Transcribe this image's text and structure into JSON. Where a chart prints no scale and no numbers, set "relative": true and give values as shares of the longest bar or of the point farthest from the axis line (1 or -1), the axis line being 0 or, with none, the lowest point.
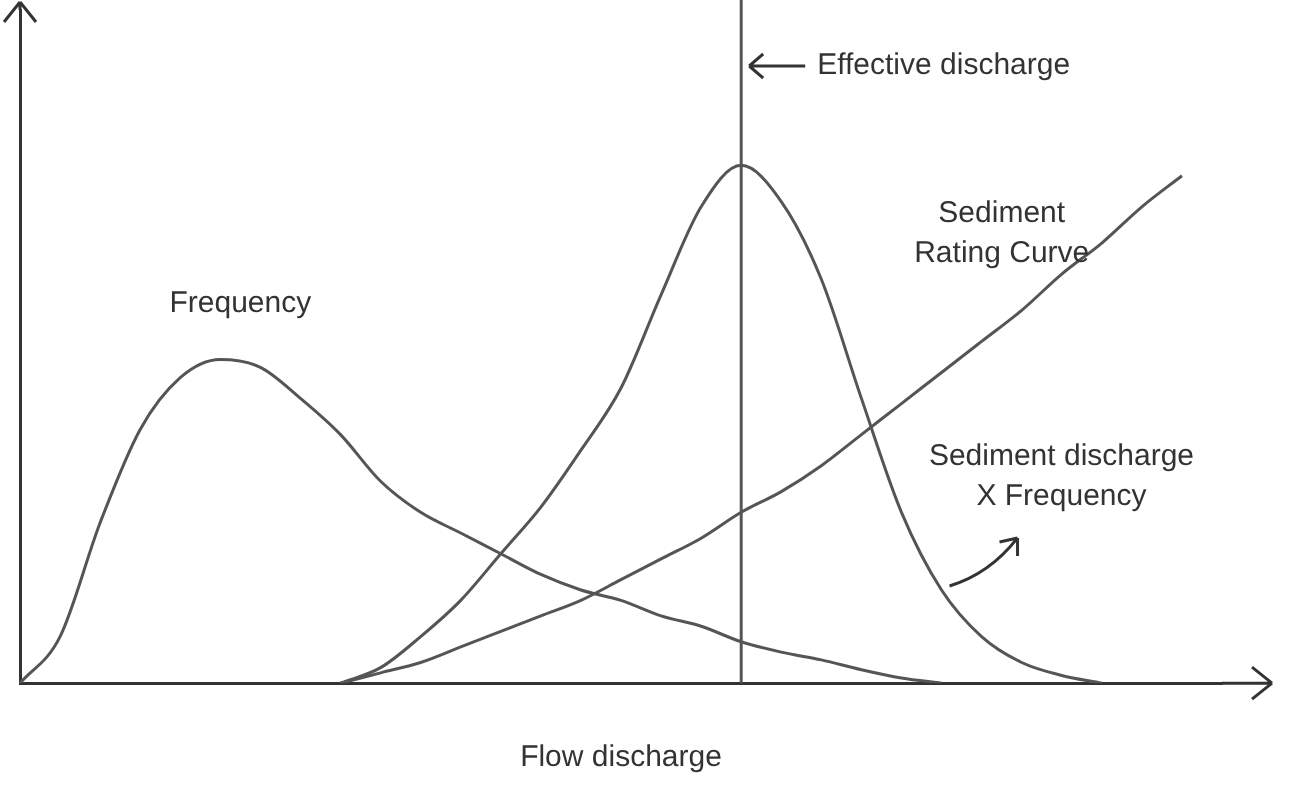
{
  "chart_data": {
    "type": "line",
    "relative": true,
    "xlabel": "Flow discharge",
    "legend": false,
    "grid": false,
    "marker": "none",
    "line_style": "solid",
    "categories": [
      null,
      null,
      null,
      null,
      null,
      null,
      null,
      null,
      null,
      null,
      null,
      null,
      null,
      null,
      null,
      null,
      null,
      null,
      null,
      null,
      null,
      null,
      null,
      null,
      null,
      null,
      null,
      null,
      null,
      null,
      null
    ],
    "series": [
      {
        "name": "Frequency",
        "color": "#555555",
        "values": [
          0,
          0.09,
          0.31,
          0.49,
          0.59,
          0.625,
          0.61,
          0.55,
          0.48,
          0.39,
          0.33,
          0.29,
          0.25,
          0.21,
          0.18,
          0.16,
          0.13,
          0.11,
          0.08,
          0.06,
          0.045,
          0.026,
          0.01,
          0,
          null,
          null,
          null,
          null,
          null,
          null,
          null
        ]
      },
      {
        "name": "Sediment Rating Curve",
        "color": "#555555",
        "values": [
          null,
          null,
          null,
          null,
          null,
          null,
          null,
          null,
          0,
          0.02,
          0.04,
          0.07,
          0.1,
          0.13,
          0.16,
          0.2,
          0.24,
          0.28,
          0.33,
          0.37,
          0.42,
          0.48,
          0.54,
          0.6,
          0.66,
          0.72,
          0.79,
          0.85,
          0.92,
          0.98,
          null
        ]
      },
      {
        "name": "Sediment discharge X Frequency",
        "color": "#555555",
        "values": [
          null,
          null,
          null,
          null,
          null,
          null,
          null,
          null,
          0,
          0.03,
          0.09,
          0.16,
          0.25,
          0.34,
          0.45,
          0.57,
          0.75,
          0.92,
          1,
          0.93,
          0.78,
          0.55,
          0.33,
          0.18,
          0.09,
          0.04,
          0.015,
          0,
          null,
          null,
          null
        ]
      }
    ],
    "annotations": [
      "Effective discharge"
    ]
  }
}
